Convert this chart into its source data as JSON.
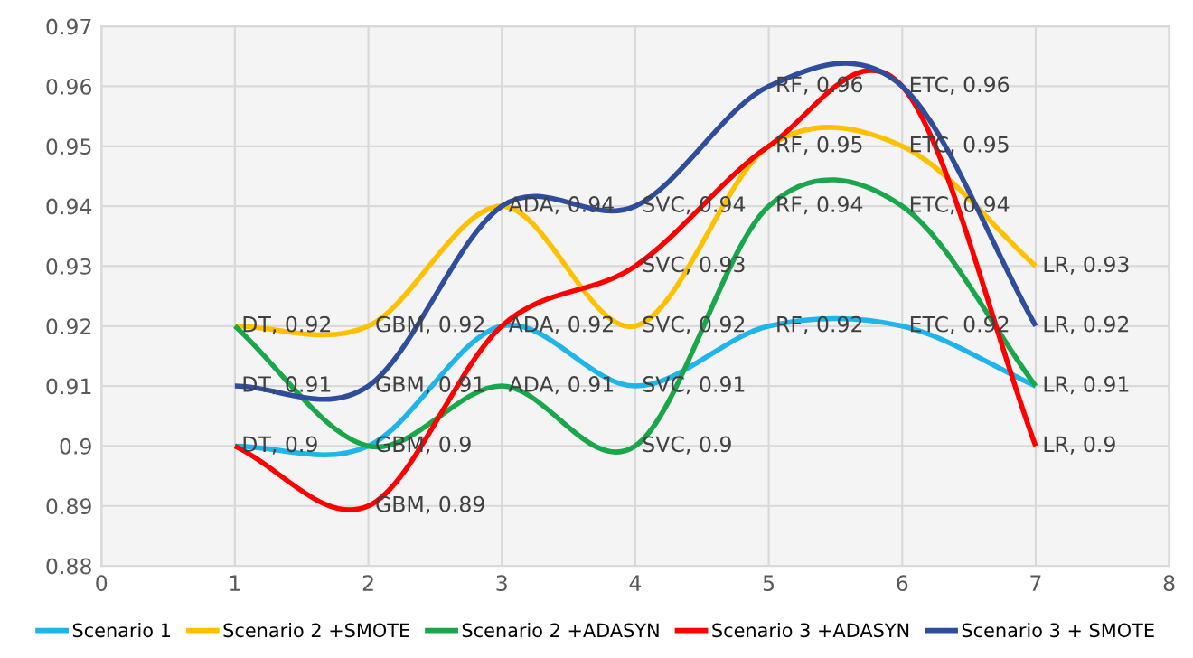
{
  "chart_data": {
    "type": "line",
    "x": [
      1,
      2,
      3,
      4,
      5,
      6,
      7
    ],
    "series": [
      {
        "name": "Scenario 1",
        "color": "#1fb4ea",
        "values": [
          0.9,
          0.9,
          0.92,
          0.91,
          0.92,
          0.92,
          0.91
        ],
        "value_labels": [
          "DT, 0.9",
          "GBM, 0.9",
          "ADA, 0.92",
          "SVC, 0.91",
          "RF, 0.92",
          "ETC, 0.92",
          "LR, 0.91"
        ]
      },
      {
        "name": "Scenario 2 +SMOTE",
        "color": "#ffc000",
        "values": [
          0.92,
          0.92,
          0.94,
          0.92,
          0.95,
          0.95,
          0.93
        ],
        "value_labels": [
          "DT, 0.92",
          "GBM, 0.92",
          "ADA, 0.94",
          "SVC, 0.92",
          "RF, 0.95",
          "ETC, 0.95",
          "LR, 0.93"
        ]
      },
      {
        "name": "Scenario 2 +ADASYN",
        "color": "#1aa64a",
        "values": [
          0.92,
          0.9,
          0.91,
          0.9,
          0.94,
          0.94,
          0.91
        ],
        "value_labels": [
          null,
          null,
          "ADA, 0.91",
          "SVC, 0.9",
          "RF, 0.94",
          "ETC, 0.94",
          null
        ]
      },
      {
        "name": "Scenario 3 +ADASYN",
        "color": "#ff0000",
        "values": [
          0.9,
          0.89,
          0.92,
          0.93,
          0.95,
          0.96,
          0.9
        ],
        "value_labels": [
          null,
          "GBM, 0.89",
          null,
          "SVC, 0.93",
          null,
          "ETC, 0.96",
          "LR, 0.9"
        ]
      },
      {
        "name": "Scenario 3 + SMOTE",
        "color": "#2e4d9c",
        "values": [
          0.91,
          0.91,
          0.94,
          0.94,
          0.96,
          0.96,
          0.92
        ],
        "value_labels": [
          "DT, 0.91",
          "GBM, 0.91",
          null,
          "SVC, 0.94",
          "RF, 0.96",
          null,
          "LR, 0.92"
        ]
      }
    ],
    "xlim": [
      0,
      8
    ],
    "xticks": [
      0,
      1,
      2,
      3,
      4,
      5,
      6,
      7,
      8
    ],
    "ylim": [
      0.88,
      0.97
    ],
    "yticks": [
      0.88,
      0.89,
      0.9,
      0.91,
      0.92,
      0.93,
      0.94,
      0.95,
      0.96,
      0.97
    ],
    "grid": true,
    "legend": "bottom",
    "marker": "none",
    "line_style": "solid"
  }
}
